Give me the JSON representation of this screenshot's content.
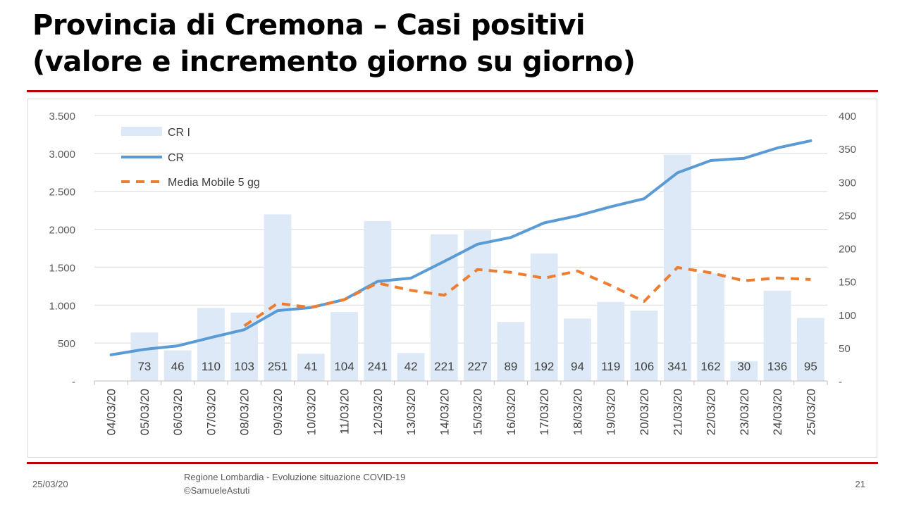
{
  "slide": {
    "title_line1": "Provincia di Cremona – Casi positivi",
    "title_line2": "(valore e incremento giorno su giorno)"
  },
  "footer": {
    "date": "25/03/20",
    "source_line1": "Regione Lombardia - Evoluzione situazione COVID-19",
    "source_line2": "©SamueleAstuti",
    "page_number": "21"
  },
  "chart_data": {
    "type": "bar",
    "categories": [
      "04/03/20",
      "05/03/20",
      "06/03/20",
      "07/03/20",
      "08/03/20",
      "09/03/20",
      "10/03/20",
      "11/03/20",
      "12/03/20",
      "13/03/20",
      "14/03/20",
      "15/03/20",
      "16/03/20",
      "17/03/20",
      "18/03/20",
      "19/03/20",
      "20/03/20",
      "21/03/20",
      "22/03/20",
      "23/03/20",
      "24/03/20",
      "25/03/20"
    ],
    "series": [
      {
        "name": "CR I",
        "type": "bar",
        "axis": "right",
        "color": "#dde9f6",
        "values": [
          null,
          73,
          46,
          110,
          103,
          251,
          41,
          104,
          241,
          42,
          221,
          227,
          89,
          192,
          94,
          119,
          106,
          341,
          162,
          30,
          136,
          95
        ],
        "labels": [
          "",
          "73",
          "46",
          "110",
          "103",
          "251",
          "41",
          "104",
          "241",
          "42",
          "221",
          "227",
          "89",
          "192",
          "94",
          "119",
          "106",
          "341",
          "162",
          "30",
          "136",
          "95"
        ]
      },
      {
        "name": "CR",
        "type": "line",
        "axis": "left",
        "color": "#5b9bd5",
        "dash": "solid",
        "values": [
          344,
          417,
          463,
          573,
          676,
          927,
          968,
          1072,
          1313,
          1355,
          1576,
          1803,
          1892,
          2084,
          2178,
          2297,
          2403,
          2744,
          2906,
          2936,
          3072,
          3167
        ]
      },
      {
        "name": "Media Mobile 5 gg",
        "type": "line",
        "axis": "left",
        "color": "#ed7d31",
        "dash": "dashed",
        "start_index": 4,
        "values": [
          null,
          null,
          null,
          null,
          727,
          1023,
          968,
          1072,
          1290,
          1195,
          1131,
          1470,
          1432,
          1355,
          1450,
          1260,
          1048,
          1496,
          1426,
          1321,
          1357,
          1338
        ]
      }
    ],
    "y_left": {
      "min": 0,
      "max": 3500,
      "ticks": [
        "-",
        "500",
        "1.000",
        "1.500",
        "2.000",
        "2.500",
        "3.000",
        "3.500"
      ]
    },
    "y_right": {
      "min": 0,
      "max": 400,
      "ticks": [
        "-",
        "50",
        "100",
        "150",
        "200",
        "250",
        "300",
        "350",
        "400"
      ]
    },
    "grid": true,
    "legend_position": "top-left"
  }
}
